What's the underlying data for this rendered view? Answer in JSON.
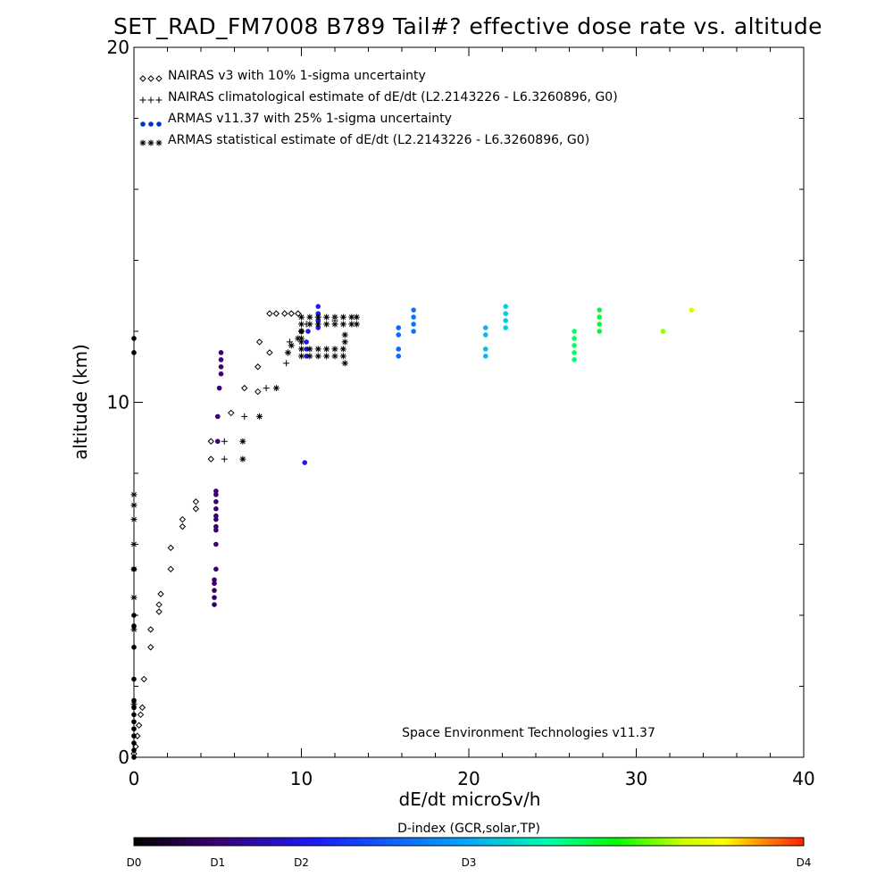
{
  "title": "SET_RAD_FM7008  B789 Tail#? effective dose rate vs. altitude",
  "credit": "Space Environment Technologies v11.37",
  "chart_data": {
    "type": "scatter",
    "xlabel": "dE/dt microSv/h",
    "ylabel": "altitude (km)",
    "xlim": [
      0,
      40
    ],
    "ylim": [
      0,
      20
    ],
    "x_ticks": [
      0,
      10,
      20,
      30,
      40
    ],
    "y_ticks": [
      0,
      10,
      20
    ],
    "grid": false,
    "legend_placement": "top-left",
    "series": [
      {
        "name": "NAIRAS v3 with 10% 1-sigma uncertainty",
        "marker": "diamond",
        "color": "#000000",
        "points": [
          [
            0.0,
            0.1
          ],
          [
            0.1,
            0.3
          ],
          [
            0.2,
            0.6
          ],
          [
            0.3,
            0.9
          ],
          [
            0.4,
            1.2
          ],
          [
            0.5,
            1.4
          ],
          [
            0.6,
            2.2
          ],
          [
            1.0,
            3.1
          ],
          [
            1.0,
            3.6
          ],
          [
            1.5,
            4.1
          ],
          [
            1.5,
            4.3
          ],
          [
            1.6,
            4.6
          ],
          [
            2.2,
            5.3
          ],
          [
            2.2,
            5.9
          ],
          [
            2.9,
            6.5
          ],
          [
            2.9,
            6.7
          ],
          [
            3.7,
            7.0
          ],
          [
            3.7,
            7.2
          ],
          [
            4.6,
            8.4
          ],
          [
            4.6,
            8.9
          ],
          [
            5.8,
            9.7
          ],
          [
            6.6,
            10.4
          ],
          [
            7.4,
            10.3
          ],
          [
            7.4,
            11.0
          ],
          [
            7.5,
            11.7
          ],
          [
            8.1,
            11.4
          ],
          [
            8.1,
            12.5
          ],
          [
            8.5,
            12.5
          ],
          [
            9.0,
            12.5
          ],
          [
            9.4,
            12.5
          ],
          [
            9.8,
            12.5
          ],
          [
            10.0,
            12.0
          ]
        ]
      },
      {
        "name": "NAIRAS climatological estimate of dE/dt (L2.2143226 - L6.3260896, G0)",
        "marker": "plus",
        "color": "#000000",
        "points": [
          [
            5.4,
            8.4
          ],
          [
            5.4,
            8.9
          ],
          [
            6.6,
            9.6
          ],
          [
            7.9,
            10.4
          ],
          [
            9.1,
            11.1
          ],
          [
            9.2,
            11.4
          ],
          [
            9.3,
            11.7
          ],
          [
            10.3,
            12.2
          ],
          [
            11.0,
            12.4
          ],
          [
            12.0,
            12.3
          ]
        ]
      },
      {
        "name": "ARMAS v11.37 with 25% 1-sigma uncertainty",
        "marker": "dot",
        "color": "#0033cc",
        "points": [
          [
            0.0,
            0.0
          ],
          [
            0.0,
            0.2
          ],
          [
            0.0,
            0.4
          ],
          [
            0.0,
            0.6
          ],
          [
            0.0,
            0.8
          ],
          [
            0.0,
            1.0
          ],
          [
            0.0,
            1.2
          ],
          [
            0.0,
            1.4
          ],
          [
            0.0,
            1.6
          ],
          [
            0.0,
            2.2
          ],
          [
            0.0,
            3.1
          ],
          [
            0.0,
            3.7
          ],
          [
            0.0,
            4.0
          ],
          [
            0.0,
            5.3
          ],
          [
            0.0,
            11.4
          ],
          [
            0.0,
            11.8
          ],
          [
            4.8,
            4.3
          ],
          [
            4.8,
            4.5
          ],
          [
            4.8,
            4.7
          ],
          [
            4.8,
            4.9
          ],
          [
            4.8,
            5.0
          ],
          [
            4.9,
            5.3
          ],
          [
            4.9,
            6.0
          ],
          [
            4.9,
            6.4
          ],
          [
            4.9,
            6.5
          ],
          [
            4.9,
            6.7
          ],
          [
            4.9,
            6.8
          ],
          [
            4.9,
            7.0
          ],
          [
            4.9,
            7.2
          ],
          [
            4.9,
            7.4
          ],
          [
            4.9,
            7.5
          ],
          [
            5.0,
            8.9
          ],
          [
            5.0,
            9.6
          ],
          [
            5.1,
            10.4
          ],
          [
            5.2,
            10.8
          ],
          [
            5.2,
            11.0
          ],
          [
            5.2,
            11.2
          ],
          [
            5.2,
            11.4
          ],
          [
            10.2,
            8.3
          ],
          [
            10.3,
            11.3
          ],
          [
            10.3,
            11.5
          ],
          [
            10.3,
            11.7
          ],
          [
            10.4,
            12.0
          ],
          [
            11.0,
            12.1
          ],
          [
            11.0,
            12.3
          ],
          [
            11.0,
            12.5
          ],
          [
            11.0,
            12.7
          ],
          [
            15.8,
            11.3
          ],
          [
            15.8,
            11.5
          ],
          [
            15.8,
            11.9
          ],
          [
            15.8,
            12.1
          ],
          [
            16.7,
            12.0
          ],
          [
            16.7,
            12.2
          ],
          [
            16.7,
            12.4
          ],
          [
            16.7,
            12.6
          ],
          [
            21.0,
            11.3
          ],
          [
            21.0,
            11.5
          ],
          [
            21.0,
            11.9
          ],
          [
            21.0,
            12.1
          ],
          [
            22.2,
            12.1
          ],
          [
            22.2,
            12.3
          ],
          [
            22.2,
            12.5
          ],
          [
            22.2,
            12.7
          ],
          [
            26.3,
            11.2
          ],
          [
            26.3,
            11.4
          ],
          [
            26.3,
            11.6
          ],
          [
            26.3,
            11.8
          ],
          [
            26.3,
            12.0
          ],
          [
            27.8,
            12.0
          ],
          [
            27.8,
            12.2
          ],
          [
            27.8,
            12.4
          ],
          [
            27.8,
            12.6
          ],
          [
            31.6,
            12.0
          ],
          [
            33.3,
            12.6
          ]
        ]
      },
      {
        "name": "ARMAS statistical estimate of dE/dt (L2.2143226 - L6.3260896, G0)",
        "marker": "asterisk",
        "color": "#000000",
        "points": [
          [
            0.0,
            1.5
          ],
          [
            0.0,
            3.6
          ],
          [
            0.0,
            4.5
          ],
          [
            0.0,
            5.3
          ],
          [
            0.0,
            6.0
          ],
          [
            0.0,
            6.7
          ],
          [
            0.0,
            7.1
          ],
          [
            0.0,
            7.4
          ],
          [
            6.5,
            8.4
          ],
          [
            6.5,
            8.9
          ],
          [
            7.5,
            9.6
          ],
          [
            8.5,
            10.4
          ],
          [
            9.2,
            11.4
          ],
          [
            9.4,
            11.6
          ],
          [
            9.8,
            11.8
          ],
          [
            10.0,
            11.3
          ],
          [
            10.5,
            11.3
          ],
          [
            11.0,
            11.3
          ],
          [
            11.5,
            11.3
          ],
          [
            12.0,
            11.3
          ],
          [
            12.5,
            11.3
          ],
          [
            10.0,
            11.5
          ],
          [
            10.5,
            11.5
          ],
          [
            11.0,
            11.5
          ],
          [
            11.5,
            11.5
          ],
          [
            12.0,
            11.5
          ],
          [
            12.5,
            11.5
          ],
          [
            10.0,
            12.4
          ],
          [
            10.5,
            12.4
          ],
          [
            11.0,
            12.4
          ],
          [
            11.5,
            12.4
          ],
          [
            12.0,
            12.4
          ],
          [
            12.5,
            12.4
          ],
          [
            13.0,
            12.4
          ],
          [
            13.3,
            12.4
          ],
          [
            10.0,
            12.2
          ],
          [
            10.5,
            12.2
          ],
          [
            11.0,
            12.2
          ],
          [
            11.5,
            12.2
          ],
          [
            12.0,
            12.2
          ],
          [
            12.5,
            12.2
          ],
          [
            13.0,
            12.2
          ],
          [
            13.3,
            12.2
          ],
          [
            10.0,
            12.0
          ],
          [
            10.0,
            11.8
          ],
          [
            10.0,
            11.7
          ],
          [
            12.6,
            11.9
          ],
          [
            12.6,
            11.7
          ],
          [
            12.6,
            11.1
          ]
        ]
      }
    ],
    "colorbar": {
      "title": "D-index (GCR,solar,TP)",
      "labels": [
        "D0",
        "D1",
        "D2",
        "D3",
        "D4"
      ],
      "label_values": [
        0,
        5,
        10,
        20,
        40
      ],
      "range": [
        0,
        40
      ],
      "colors": [
        "#000000",
        "#3b0070",
        "#1a1aff",
        "#00aaff",
        "#00ffaa",
        "#00ff00",
        "#ccff00",
        "#ffff00",
        "#ff8800",
        "#ff2200"
      ]
    }
  }
}
